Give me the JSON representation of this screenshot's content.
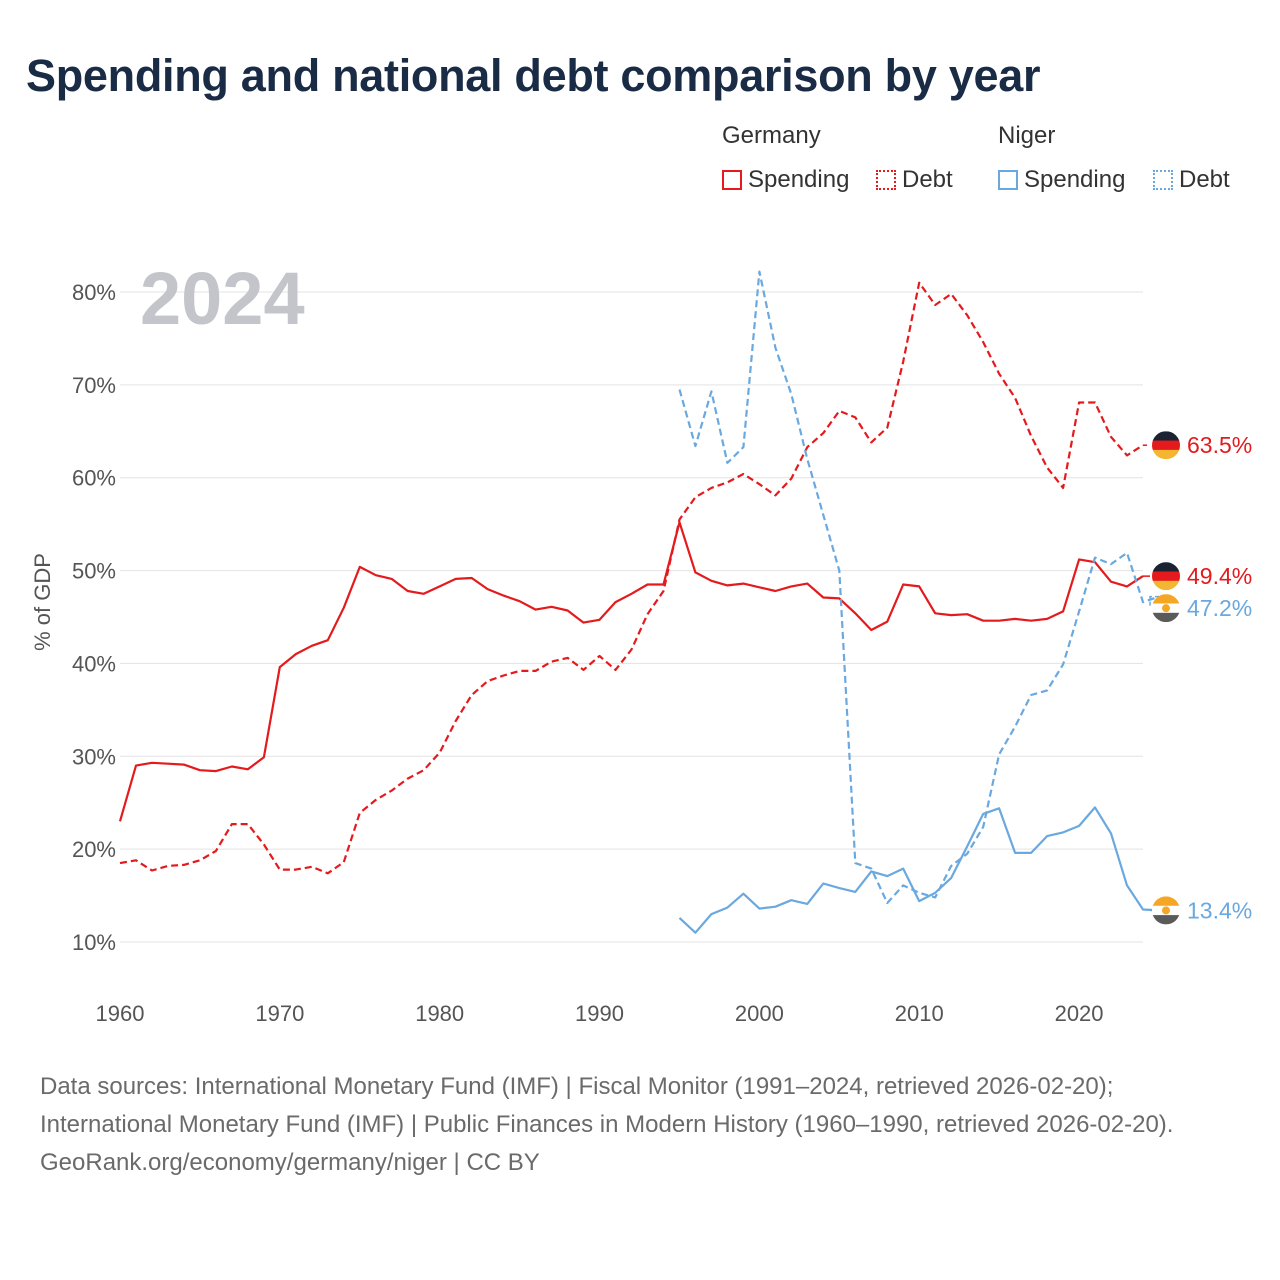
{
  "title": "Spending and national debt comparison by year",
  "legend": {
    "groups": [
      {
        "name": "Germany",
        "items": [
          {
            "label": "Spending",
            "style": "solid",
            "color": "#e41a1c"
          },
          {
            "label": "Debt",
            "style": "dotted",
            "color": "#e41a1c"
          }
        ]
      },
      {
        "name": "Niger",
        "items": [
          {
            "label": "Spending",
            "style": "solid",
            "color": "#6aa8e0"
          },
          {
            "label": "Debt",
            "style": "dotted",
            "color": "#6aa8e0"
          }
        ]
      }
    ]
  },
  "footer": {
    "sources": "Data sources: International Monetary Fund (IMF) | Fiscal Monitor (1991–2024, retrieved 2026-02-20); International Monetary Fund (IMF) | Public Finances in Modern History (1960–1990, retrieved 2026-02-20).",
    "credit": "GeoRank.org/economy/germany/niger | CC BY"
  },
  "chart_data": {
    "type": "line",
    "year_label": "2024",
    "ylabel": "% of GDP",
    "xlim": [
      1960,
      2024
    ],
    "ylim": [
      10,
      80
    ],
    "x_ticks": [
      1960,
      1970,
      1980,
      1990,
      2000,
      2010,
      2020
    ],
    "y_ticks": [
      10,
      20,
      30,
      40,
      50,
      60,
      70,
      80
    ],
    "y_tick_labels": [
      "10%",
      "20%",
      "30%",
      "40%",
      "50%",
      "60%",
      "70%",
      "80%"
    ],
    "grid": true,
    "colors": {
      "germany": "#e41a1c",
      "niger": "#6aa8e0"
    },
    "series": [
      {
        "name": "Germany Spending",
        "country": "germany",
        "style": "solid",
        "start": 1960,
        "values": [
          23.0,
          29.0,
          29.3,
          29.2,
          29.1,
          28.5,
          28.4,
          28.9,
          28.6,
          29.9,
          39.6,
          41.0,
          41.9,
          42.5,
          46.0,
          50.4,
          49.5,
          49.1,
          47.8,
          47.5,
          48.3,
          49.1,
          49.2,
          48.0,
          47.3,
          46.7,
          45.8,
          46.1,
          45.7,
          44.4,
          44.7,
          46.6,
          47.5,
          48.5,
          48.5,
          55.2,
          49.8,
          48.9,
          48.4,
          48.6,
          48.2,
          47.8,
          48.3,
          48.6,
          47.1,
          47.0,
          45.4,
          43.6,
          44.5,
          48.5,
          48.3,
          45.4,
          45.2,
          45.3,
          44.6,
          44.6,
          44.8,
          44.6,
          44.8,
          45.6,
          51.2,
          50.9,
          48.8,
          48.3,
          49.4
        ],
        "end_label": "49.4%"
      },
      {
        "name": "Germany Debt",
        "country": "germany",
        "style": "dashed",
        "start": 1960,
        "values": [
          18.5,
          18.8,
          17.7,
          18.2,
          18.3,
          18.8,
          19.8,
          22.7,
          22.7,
          20.5,
          17.8,
          17.8,
          18.1,
          17.4,
          18.6,
          23.9,
          25.3,
          26.3,
          27.6,
          28.5,
          30.4,
          33.8,
          36.6,
          38.1,
          38.7,
          39.2,
          39.2,
          40.2,
          40.6,
          39.3,
          40.8,
          39.3,
          41.5,
          45.3,
          47.8,
          55.5,
          57.9,
          58.9,
          59.5,
          60.4,
          59.3,
          58.1,
          59.9,
          63.3,
          64.8,
          67.2,
          66.5,
          63.8,
          65.4,
          72.5,
          81.0,
          78.6,
          79.8,
          77.5,
          74.6,
          71.2,
          68.6,
          64.5,
          61.1,
          58.9,
          68.1,
          68.1,
          64.4,
          62.4,
          63.5
        ],
        "end_label": "63.5%"
      },
      {
        "name": "Niger Spending",
        "country": "niger",
        "style": "solid",
        "start": 1995,
        "values": [
          12.6,
          11.0,
          13.0,
          13.7,
          15.2,
          13.6,
          13.8,
          14.5,
          14.1,
          16.3,
          15.8,
          15.4,
          17.6,
          17.1,
          17.9,
          14.4,
          15.3,
          16.9,
          20.3,
          23.8,
          24.4,
          19.6,
          19.6,
          21.4,
          21.8,
          22.5,
          24.5,
          21.7,
          16.1,
          13.5,
          13.4
        ],
        "end_label": "13.4%"
      },
      {
        "name": "Niger Debt",
        "country": "niger",
        "style": "dashed",
        "start": 1995,
        "values": [
          69.5,
          63.4,
          69.3,
          61.6,
          63.3,
          82.2,
          74.0,
          69.0,
          62.0,
          56.0,
          50.0,
          18.5,
          17.9,
          14.2,
          16.1,
          15.3,
          14.8,
          18.2,
          19.5,
          22.4,
          30.2,
          33.2,
          36.6,
          37.1,
          39.9,
          45.6,
          51.4,
          50.7,
          51.9,
          46.6,
          47.2
        ],
        "end_label": "47.2%"
      }
    ]
  }
}
